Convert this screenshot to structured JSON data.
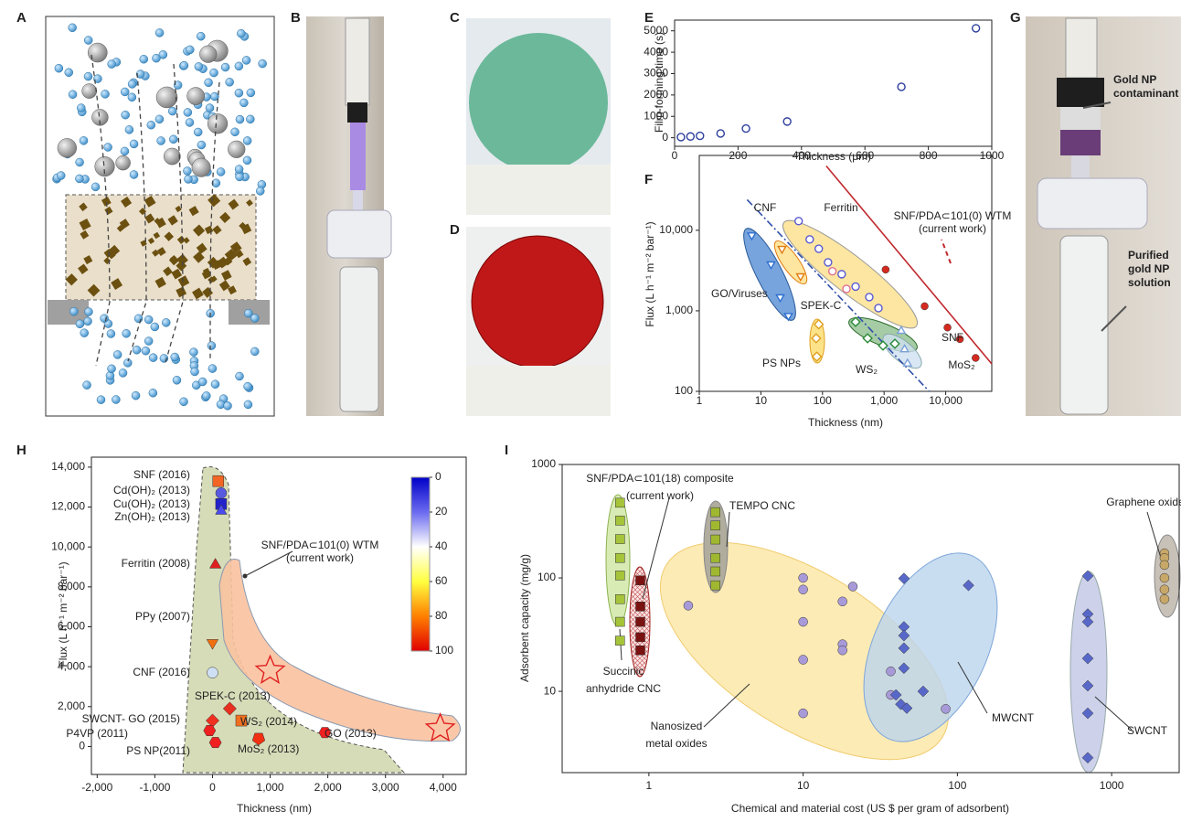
{
  "panel_labels": [
    "A",
    "B",
    "C",
    "D",
    "E",
    "F",
    "G",
    "H",
    "I"
  ],
  "photo_annotations": [
    [
      "Gold NP",
      "contaminant"
    ],
    [
      "Purified",
      "gold NP",
      "solution"
    ]
  ],
  "chart_data": [
    {
      "type": "scatter",
      "xlabel": "Thickness (μm)",
      "ylabel": "Film-forming time (s)",
      "xlim": [
        0,
        1000
      ],
      "ylim": [
        -400,
        5500
      ],
      "xticks": [
        0,
        200,
        400,
        600,
        800,
        1000
      ],
      "yticks": [
        0,
        1000,
        2000,
        3000,
        4000,
        5000
      ],
      "series": [
        {
          "color": "#2e3f9e",
          "marker": "circle",
          "hollow": true,
          "x": [
            20,
            50,
            80,
            145,
            225,
            355,
            715,
            950
          ],
          "values": [
            30,
            60,
            90,
            200,
            430,
            760,
            2380,
            5120
          ]
        }
      ]
    },
    {
      "type": "scatter",
      "log_x": true,
      "log_y": true,
      "xlabel": "Thickness (nm)",
      "ylabel": "Flux (L h⁻¹ m⁻² bar⁻¹)",
      "xlim": [
        1,
        56000
      ],
      "ylim": [
        100,
        85000
      ],
      "xticks": [
        1,
        10,
        100,
        {
          "value": 1000,
          "label": "1,000"
        },
        {
          "value": 10000,
          "label": "10,000"
        }
      ],
      "yticks": [
        100,
        {
          "value": 1000,
          "label": "1,000"
        },
        {
          "value": 10000,
          "label": "10,000"
        }
      ],
      "annotation": [
        "SNF/PDA⊂101(0) WTM",
        "(current work)"
      ],
      "lines": [
        {
          "color": "#c0282d",
          "dashed": false,
          "x": [
            115,
            56000
          ],
          "values": [
            63000,
            219
          ]
        },
        {
          "color": "#2f4fa8",
          "dashed": true,
          "x": [
            6,
            5400
          ],
          "values": [
            24000,
            100
          ]
        }
      ],
      "series": [
        {
          "name": "GO/Viruses",
          "color": "#2f6fcf",
          "marker": "tri-down",
          "hollow": true,
          "x": [
            7.1,
            14.6,
            20.6,
            28
          ],
          "values": [
            8700,
            3800,
            1480,
            870
          ]
        },
        {
          "name": "CNF",
          "color": "#e07b10",
          "marker": "tri-down",
          "hollow": true,
          "x": [
            22,
            44
          ],
          "values": [
            5900,
            2700
          ]
        },
        {
          "name": "Ferritin",
          "color": "#5a5ad0",
          "marker": "circle",
          "hollow": true,
          "x": [
            41,
            62,
            87,
            123,
            205,
            345,
            575,
            810
          ],
          "values": [
            13000,
            7700,
            5900,
            4000,
            2850,
            2000,
            1480,
            1080
          ]
        },
        {
          "name": "SPEK-C",
          "color": "#e07090",
          "marker": "circle",
          "hollow": true,
          "x": [
            145,
            245
          ],
          "values": [
            3100,
            1870
          ]
        },
        {
          "name": "PS NPs",
          "color": "#e0a020",
          "marker": "diamond",
          "hollow": true,
          "x": [
            87,
            79,
            81
          ],
          "values": [
            680,
            455,
            270
          ]
        },
        {
          "name": "WS₂",
          "color": "#2a8a3a",
          "marker": "diamond",
          "hollow": true,
          "x": [
            345,
            540,
            960,
            1500
          ],
          "values": [
            730,
            455,
            370,
            390
          ]
        },
        {
          "name": "MoS₂",
          "color": "#7aa0d8",
          "marker": "triangle",
          "hollow": true,
          "x": [
            1900,
            2150,
            2400
          ],
          "values": [
            560,
            330,
            220
          ]
        },
        {
          "name": "SNF",
          "color": "#d42a20",
          "marker": "circle",
          "hollow": false,
          "x": [
            1060,
            4550,
            10700,
            17000,
            30600
          ],
          "values": [
            3250,
            1140,
            620,
            445,
            260
          ]
        }
      ]
    },
    {
      "type": "scatter",
      "xlabel": "Thickness (nm)",
      "ylabel": "Flux (L h⁻¹ m⁻² bar⁻¹)",
      "xlim": [
        -2100,
        4400
      ],
      "ylim": [
        -1400,
        14500
      ],
      "xticks": [
        {
          "value": -2000,
          "label": "-2,000"
        },
        {
          "value": -1000,
          "label": "-1,000"
        },
        0,
        {
          "value": 1000,
          "label": "1,000"
        },
        {
          "value": 2000,
          "label": "2,000"
        },
        {
          "value": 3000,
          "label": "3,000"
        },
        {
          "value": 4000,
          "label": "4,000"
        }
      ],
      "yticks": [
        0,
        {
          "value": 2000,
          "label": "2,000"
        },
        {
          "value": 4000,
          "label": "4,000"
        },
        {
          "value": 6000,
          "label": "6,000"
        },
        {
          "value": 8000,
          "label": "8,000"
        },
        {
          "value": 10000,
          "label": "10,000"
        },
        {
          "value": 12000,
          "label": "12,000"
        },
        {
          "value": 14000,
          "label": "14,000"
        }
      ],
      "annotation": [
        "SNF/PDA⊂101(0) WTM",
        "(current work)"
      ],
      "colorbar": {
        "lim": [
          0,
          100
        ],
        "ticks": [
          0,
          20,
          40,
          60,
          80,
          100
        ],
        "colors": [
          "#0000c8",
          "#6a6af0",
          "#ffffff",
          "#ffff40",
          "#ff8000",
          "#e00000"
        ]
      },
      "series": [
        {
          "name": "SNF (2016)",
          "color": "#f26522",
          "marker": "square",
          "x": [
            100
          ],
          "values": [
            13300
          ]
        },
        {
          "name": "Cd(OH)₂ (2013)",
          "color": "#5a5ae0",
          "marker": "circle",
          "x": [
            150
          ],
          "values": [
            12700
          ]
        },
        {
          "name": "Cu(OH)₂ (2013)",
          "color": "#2222cc",
          "marker": "square",
          "x": [
            150
          ],
          "values": [
            12150
          ]
        },
        {
          "name": "Zn(OH)₂ (2013)",
          "color": "#4a4af0",
          "marker": "triangle",
          "x": [
            150
          ],
          "values": [
            11800
          ]
        },
        {
          "name": "Ferritin (2008)",
          "color": "#e02020",
          "marker": "triangle",
          "x": [
            50
          ],
          "values": [
            9100
          ]
        },
        {
          "name": "PPy (2007)",
          "color": "#f07010",
          "marker": "tri-down",
          "x": [
            0
          ],
          "values": [
            5200
          ]
        },
        {
          "name": "CNF (2016)",
          "color": "#cfe0f4",
          "marker": "circle",
          "x": [
            0
          ],
          "values": [
            3700
          ]
        },
        {
          "name": "SPEK-C (2013)",
          "color": "#e83020",
          "marker": "diamond",
          "x": [
            300
          ],
          "values": [
            1900
          ]
        },
        {
          "name": "WS₂ (2014)",
          "color": "#f07020",
          "marker": "square",
          "x": [
            500
          ],
          "values": [
            1300
          ]
        },
        {
          "name": "SWCNT- GO (2015)",
          "color": "#f03020",
          "marker": "diamond",
          "x": [
            0
          ],
          "values": [
            1300
          ]
        },
        {
          "name": "P4VP (2011)",
          "color": "#f02020",
          "marker": "hexagon",
          "x": [
            -50
          ],
          "values": [
            800
          ]
        },
        {
          "name": "PS NP(2011)",
          "color": "#f02020",
          "marker": "hexagon",
          "x": [
            50
          ],
          "values": [
            200
          ]
        },
        {
          "name": "MoS₂ (2013)",
          "color": "#f03010",
          "marker": "pentagon",
          "x": [
            800
          ],
          "values": [
            400
          ]
        },
        {
          "name": "GO (2013)",
          "color": "#f02020",
          "marker": "hexagon",
          "x": [
            1950
          ],
          "values": [
            700
          ]
        },
        {
          "color": "#e02020",
          "marker": "star",
          "hollow": true,
          "x": [
            1000,
            3950
          ],
          "values": [
            3800,
            900
          ]
        }
      ]
    },
    {
      "type": "scatter",
      "log_x": true,
      "log_y": true,
      "xlabel": "Chemical and material cost (US $ per gram of adsorbent)",
      "ylabel": "Adsorbent capacity (mg/g)",
      "xlim": [
        0.274,
        2740
      ],
      "ylim": [
        1.92,
        1000
      ],
      "xticks": [
        1,
        10,
        100,
        1000
      ],
      "yticks": [
        10,
        100,
        1000
      ],
      "series": [
        {
          "label": [
            "Succinic",
            "anhydride CNC"
          ],
          "color": "#a6c43a",
          "marker": "square",
          "x": [
            0.65,
            0.65,
            0.65,
            0.65,
            0.65,
            0.65,
            0.65,
            0.65
          ],
          "values": [
            460,
            320,
            220,
            150,
            105,
            65,
            41,
            28
          ]
        },
        {
          "label": [
            "SNF/PDA⊂101(18) composite",
            "(current work)"
          ],
          "color": "#7a1212",
          "marker": "square",
          "x": [
            0.88,
            0.88,
            0.88,
            0.88,
            0.88
          ],
          "values": [
            95,
            56,
            41,
            30,
            23
          ]
        },
        {
          "label": [
            "TEMPO CNC"
          ],
          "color": "#a0b830",
          "marker": "square",
          "x": [
            2.7,
            2.7,
            2.7,
            2.7,
            2.7,
            2.7
          ],
          "values": [
            380,
            290,
            218,
            150,
            114,
            86
          ]
        },
        {
          "label": [
            "Nanosized",
            "metal oxides"
          ],
          "color": "#a89ad8",
          "marker": "circle",
          "x": [
            1.8,
            10,
            10,
            10,
            10,
            10,
            18,
            18,
            18,
            21,
            37,
            37,
            84
          ],
          "values": [
            57,
            100,
            79,
            41,
            19,
            6.4,
            62,
            26,
            23,
            84,
            15,
            9.3,
            7
          ]
        },
        {
          "label": [
            "MWCNT"
          ],
          "color": "#5868c8",
          "marker": "diamond",
          "x": [
            45,
            45,
            45,
            45,
            45,
            40,
            43,
            47,
            60,
            118
          ],
          "values": [
            99,
            37,
            31,
            24,
            16,
            9.3,
            7.7,
            7.1,
            10,
            86
          ]
        },
        {
          "label": [
            "SWCNT"
          ],
          "color": "#5868c8",
          "marker": "diamond",
          "x": [
            700,
            700,
            700,
            700,
            700,
            700,
            700
          ],
          "values": [
            104,
            48,
            41,
            19.5,
            11.2,
            6.4,
            2.6
          ]
        },
        {
          "label": [
            "Graphene oxide"
          ],
          "color": "#c8a868",
          "marker": "circle",
          "x": [
            2200,
            2200,
            2200,
            2200,
            2200,
            2200
          ],
          "values": [
            165,
            150,
            130,
            100,
            79,
            65
          ]
        }
      ]
    }
  ]
}
